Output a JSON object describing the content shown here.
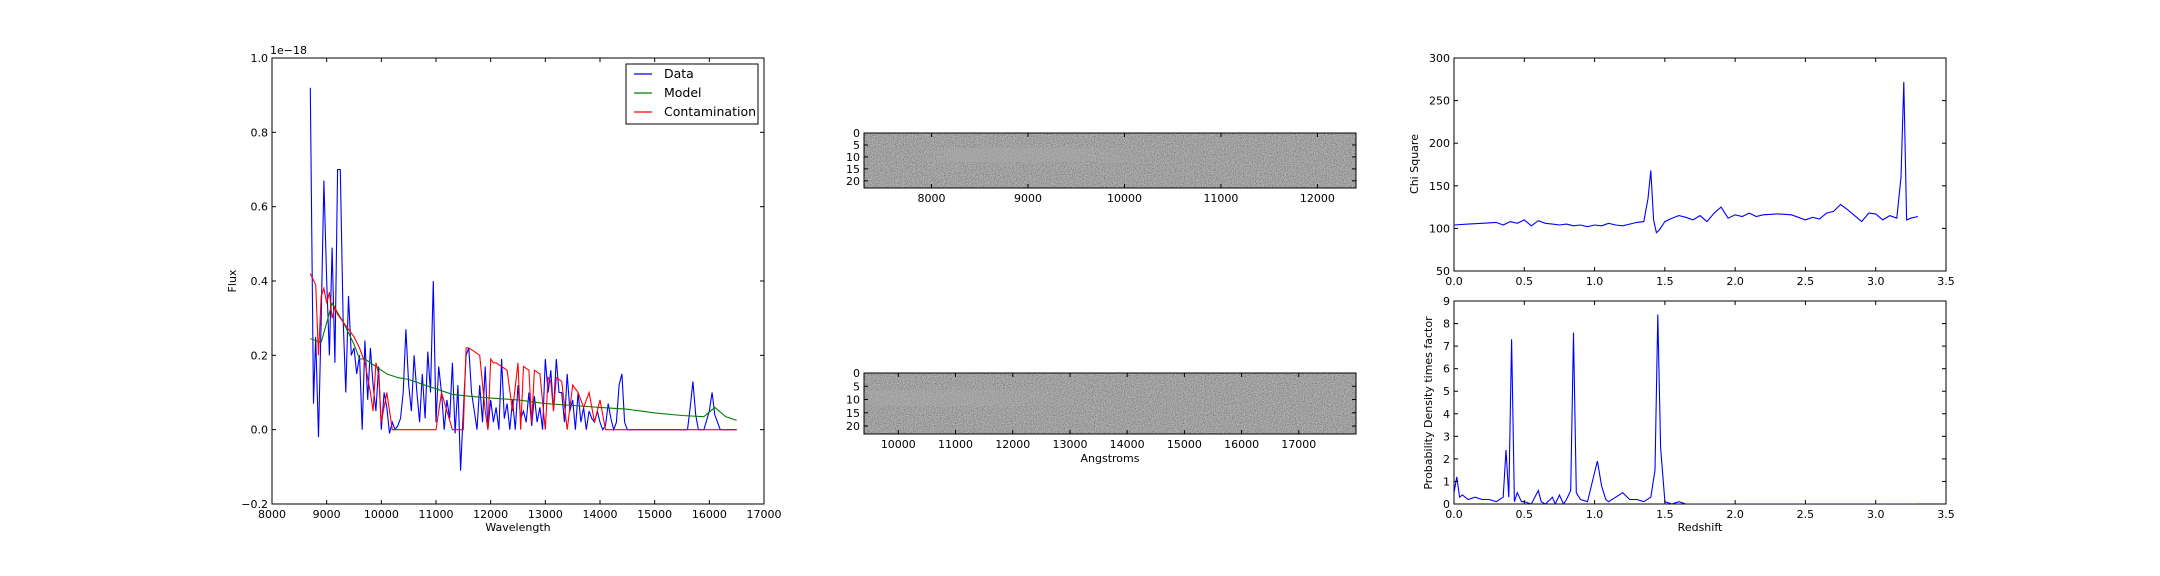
{
  "chart_data": [
    {
      "type": "line",
      "xlabel": "Wavelength",
      "ylabel": "Flux",
      "y_scale_note": "1e−18",
      "xlim": [
        8000,
        17000
      ],
      "ylim": [
        -0.2,
        1.0
      ],
      "xticks": [
        8000,
        9000,
        10000,
        11000,
        12000,
        13000,
        14000,
        15000,
        16000,
        17000
      ],
      "yticks": [
        "−0.2",
        "0.0",
        "0.2",
        "0.4",
        "0.6",
        "0.8",
        "1.0"
      ],
      "ytick_values": [
        -0.2,
        0.0,
        0.2,
        0.4,
        0.6,
        0.8,
        1.0
      ],
      "legend": "top-right",
      "series": [
        {
          "name": "Data",
          "color": "#0000ff",
          "x": [
            8700,
            8760,
            8800,
            8850,
            8900,
            8950,
            9000,
            9050,
            9100,
            9150,
            9200,
            9250,
            9300,
            9350,
            9400,
            9450,
            9500,
            9550,
            9600,
            9650,
            9700,
            9750,
            9800,
            9850,
            9900,
            9950,
            10000,
            10050,
            10100,
            10150,
            10200,
            10250,
            10300,
            10350,
            10400,
            10450,
            10500,
            10550,
            10600,
            10650,
            10700,
            10750,
            10800,
            10850,
            10900,
            10950,
            11000,
            11050,
            11100,
            11150,
            11200,
            11250,
            11300,
            11350,
            11400,
            11450,
            11500,
            11550,
            11600,
            11650,
            11700,
            11750,
            11800,
            11850,
            11900,
            11950,
            12000,
            12050,
            12100,
            12150,
            12200,
            12250,
            12300,
            12350,
            12400,
            12450,
            12500,
            12550,
            12600,
            12650,
            12700,
            12750,
            12800,
            12850,
            12900,
            12950,
            13000,
            13050,
            13100,
            13150,
            13200,
            13250,
            13300,
            13350,
            13400,
            13450,
            13500,
            13550,
            13600,
            13650,
            13700,
            13750,
            13800,
            13850,
            13900,
            13950,
            14000,
            14050,
            14100,
            14150,
            14200,
            14250,
            14300,
            14350,
            14400,
            14450,
            14500,
            14600,
            14800,
            15000,
            15200,
            15400,
            15500,
            15600,
            15650,
            15700,
            15750,
            15800,
            15900,
            16000,
            16050,
            16100,
            16150,
            16200,
            16300,
            16400,
            16500
          ],
          "y": [
            0.92,
            0.07,
            0.25,
            -0.02,
            0.3,
            0.67,
            0.4,
            0.2,
            0.49,
            0.18,
            0.7,
            0.7,
            0.3,
            0.1,
            0.36,
            0.2,
            0.22,
            0.15,
            0.2,
            0.0,
            0.24,
            0.08,
            0.22,
            0.12,
            0.05,
            0.17,
            0.0,
            0.1,
            0.06,
            -0.01,
            0.02,
            0.0,
            0.01,
            0.03,
            0.1,
            0.27,
            0.12,
            0.05,
            0.2,
            0.1,
            0.02,
            0.15,
            0.03,
            0.21,
            0.1,
            0.4,
            0.02,
            0.17,
            0.1,
            0.0,
            0.08,
            0.03,
            0.18,
            -0.01,
            0.12,
            -0.11,
            0.05,
            0.2,
            0.22,
            0.1,
            0.05,
            0.0,
            0.12,
            0.02,
            0.17,
            0.0,
            0.08,
            0.02,
            0.06,
            0.0,
            0.19,
            0.03,
            0.07,
            0.0,
            0.08,
            0.0,
            0.12,
            0.03,
            0.05,
            0.02,
            0.1,
            0.01,
            0.09,
            0.02,
            0.06,
            0.0,
            0.19,
            0.1,
            0.16,
            0.05,
            0.19,
            0.1,
            0.1,
            0.02,
            0.15,
            0.05,
            0.08,
            0.0,
            0.1,
            0.02,
            0.06,
            0.0,
            0.05,
            0.03,
            0.02,
            0.05,
            0.02,
            0.0,
            0.01,
            0.07,
            0.03,
            0.0,
            0.02,
            0.12,
            0.15,
            0.02,
            0.0,
            0.0,
            0.0,
            0.0,
            0.0,
            0.0,
            0.0,
            0.0,
            0.06,
            0.13,
            0.04,
            0.0,
            0.0,
            0.05,
            0.1,
            0.04,
            0.02,
            0.0,
            0.0,
            0.0,
            0.0
          ]
        },
        {
          "name": "Model",
          "color": "#008000",
          "x": [
            8700,
            8900,
            9100,
            9300,
            9500,
            9600,
            9700,
            9900,
            10100,
            10300,
            10500,
            10800,
            11000,
            11300,
            11600,
            12000,
            12500,
            13000,
            13500,
            14000,
            14500,
            15000,
            15500,
            15900,
            16100,
            16300,
            16500
          ],
          "y": [
            0.245,
            0.235,
            0.34,
            0.29,
            0.23,
            0.19,
            0.19,
            0.17,
            0.15,
            0.14,
            0.135,
            0.12,
            0.11,
            0.095,
            0.09,
            0.085,
            0.08,
            0.07,
            0.065,
            0.06,
            0.055,
            0.045,
            0.038,
            0.035,
            0.06,
            0.035,
            0.025
          ]
        },
        {
          "name": "Contamination",
          "color": "#ff0000",
          "x": [
            8700,
            8800,
            8850,
            8900,
            8950,
            9000,
            9050,
            9100,
            9150,
            9200,
            9300,
            9400,
            9500,
            9600,
            9700,
            9750,
            9800,
            9850,
            9900,
            9950,
            10000,
            10100,
            10200,
            10300,
            10500,
            10800,
            11000,
            11100,
            11300,
            11400,
            11500,
            11550,
            11600,
            11700,
            11800,
            11900,
            11950,
            12000,
            12050,
            12100,
            12200,
            12300,
            12400,
            12500,
            12550,
            12600,
            12700,
            12750,
            12800,
            12900,
            13000,
            13050,
            13100,
            13150,
            13200,
            13300,
            13400,
            13500,
            13600,
            13700,
            13800,
            13900,
            14000,
            14100,
            14200,
            14300,
            14400,
            14600,
            15000,
            15500,
            15900,
            16000,
            16100,
            16200,
            16300,
            16500
          ],
          "y": [
            0.42,
            0.39,
            0.2,
            0.36,
            0.38,
            0.34,
            0.37,
            0.3,
            0.33,
            0.31,
            0.29,
            0.27,
            0.25,
            0.22,
            0.18,
            0.14,
            0.1,
            0.05,
            0.18,
            0.15,
            0.02,
            0.1,
            0.0,
            0.0,
            0.0,
            0.0,
            0.0,
            0.1,
            0.0,
            0.0,
            0.0,
            0.22,
            0.22,
            0.21,
            0.2,
            0.05,
            0.0,
            0.19,
            0.18,
            0.18,
            0.17,
            0.16,
            0.05,
            0.18,
            0.0,
            0.17,
            0.16,
            0.02,
            0.16,
            0.15,
            0.0,
            0.14,
            0.13,
            0.05,
            0.14,
            0.13,
            0.0,
            0.12,
            0.1,
            0.06,
            0.1,
            0.02,
            0.08,
            0.0,
            0.0,
            0.0,
            0.0,
            0.0,
            0.0,
            0.0,
            0.0,
            0.0,
            0.0,
            0.0,
            0.0,
            0.0
          ]
        }
      ]
    },
    {
      "type": "heatmap",
      "xlim": [
        7300,
        12400
      ],
      "xticks": [
        8000,
        9000,
        10000,
        11000,
        12000
      ],
      "yticks": [
        "0",
        "5",
        "10",
        "15",
        "20"
      ],
      "ytick_values": [
        0,
        5,
        10,
        15,
        20
      ],
      "ylim": [
        23,
        0
      ],
      "colormap": "gray",
      "trace_span": [
        7900,
        10400
      ]
    },
    {
      "type": "heatmap",
      "xlabel": "Angstroms",
      "xlim": [
        9400,
        18000
      ],
      "xticks": [
        10000,
        11000,
        12000,
        13000,
        14000,
        15000,
        16000,
        17000
      ],
      "yticks": [
        "0",
        "5",
        "10",
        "15",
        "20"
      ],
      "ytick_values": [
        0,
        5,
        10,
        15,
        20
      ],
      "ylim": [
        23,
        0
      ],
      "colormap": "gray",
      "trace_span": [
        9500,
        13500
      ]
    },
    {
      "type": "line",
      "ylabel": "Chi Square",
      "xlim": [
        0.0,
        3.5
      ],
      "ylim": [
        50,
        300
      ],
      "xticks": [
        "0.0",
        "0.5",
        "1.0",
        "1.5",
        "2.0",
        "2.5",
        "3.0",
        "3.5"
      ],
      "xtick_values": [
        0.0,
        0.5,
        1.0,
        1.5,
        2.0,
        2.5,
        3.0,
        3.5
      ],
      "yticks": [
        "50",
        "100",
        "150",
        "200",
        "250",
        "300"
      ],
      "ytick_values": [
        50,
        100,
        150,
        200,
        250,
        300
      ],
      "series": [
        {
          "color": "#0000ff",
          "x": [
            0.0,
            0.1,
            0.2,
            0.3,
            0.35,
            0.4,
            0.45,
            0.5,
            0.55,
            0.6,
            0.65,
            0.7,
            0.75,
            0.8,
            0.85,
            0.9,
            0.95,
            1.0,
            1.05,
            1.1,
            1.15,
            1.2,
            1.25,
            1.3,
            1.35,
            1.38,
            1.4,
            1.42,
            1.44,
            1.46,
            1.5,
            1.55,
            1.6,
            1.65,
            1.7,
            1.75,
            1.8,
            1.85,
            1.9,
            1.95,
            2.0,
            2.05,
            2.1,
            2.15,
            2.2,
            2.3,
            2.4,
            2.5,
            2.55,
            2.6,
            2.65,
            2.7,
            2.75,
            2.8,
            2.85,
            2.9,
            2.95,
            3.0,
            3.05,
            3.1,
            3.15,
            3.18,
            3.2,
            3.22,
            3.25,
            3.3
          ],
          "y": [
            104,
            105,
            106,
            107,
            104,
            108,
            106,
            110,
            103,
            109,
            106,
            105,
            104,
            105,
            103,
            104,
            102,
            104,
            103,
            106,
            104,
            103,
            105,
            107,
            108,
            135,
            168,
            110,
            95,
            98,
            108,
            112,
            115,
            113,
            110,
            115,
            108,
            118,
            125,
            112,
            116,
            114,
            118,
            114,
            116,
            117,
            116,
            110,
            113,
            111,
            118,
            120,
            128,
            122,
            115,
            108,
            118,
            117,
            110,
            115,
            112,
            160,
            272,
            110,
            112,
            114
          ]
        }
      ]
    },
    {
      "type": "line",
      "xlabel": "Redshift",
      "ylabel": "Probability Density times factor",
      "xlim": [
        0.0,
        3.5
      ],
      "ylim": [
        0,
        9
      ],
      "xticks": [
        "0.0",
        "0.5",
        "1.0",
        "1.5",
        "2.0",
        "2.5",
        "3.0",
        "3.5"
      ],
      "xtick_values": [
        0.0,
        0.5,
        1.0,
        1.5,
        2.0,
        2.5,
        3.0,
        3.5
      ],
      "yticks": [
        "0",
        "1",
        "2",
        "3",
        "4",
        "5",
        "6",
        "7",
        "8",
        "9"
      ],
      "ytick_values": [
        0,
        1,
        2,
        3,
        4,
        5,
        6,
        7,
        8,
        9
      ],
      "series": [
        {
          "color": "#0000ff",
          "x": [
            0.0,
            0.02,
            0.04,
            0.06,
            0.1,
            0.15,
            0.2,
            0.25,
            0.3,
            0.35,
            0.37,
            0.39,
            0.41,
            0.43,
            0.45,
            0.48,
            0.5,
            0.55,
            0.6,
            0.62,
            0.65,
            0.7,
            0.72,
            0.75,
            0.78,
            0.8,
            0.83,
            0.85,
            0.87,
            0.9,
            0.95,
            1.0,
            1.02,
            1.05,
            1.08,
            1.1,
            1.15,
            1.2,
            1.25,
            1.3,
            1.35,
            1.4,
            1.43,
            1.45,
            1.47,
            1.5,
            1.55,
            1.6,
            1.65,
            1.7,
            2.0,
            2.5,
            3.0,
            3.3
          ],
          "y": [
            0.5,
            1.2,
            0.3,
            0.4,
            0.2,
            0.3,
            0.2,
            0.2,
            0.1,
            0.3,
            2.4,
            0.3,
            7.3,
            0.1,
            0.5,
            0.1,
            0.1,
            0.0,
            0.6,
            0.1,
            0.0,
            0.3,
            0.0,
            0.4,
            0.0,
            0.2,
            0.6,
            7.6,
            0.5,
            0.2,
            0.1,
            1.4,
            1.9,
            0.8,
            0.2,
            0.1,
            0.3,
            0.5,
            0.2,
            0.2,
            0.1,
            0.3,
            1.5,
            8.4,
            2.5,
            0.1,
            0.0,
            0.1,
            0.0,
            0.0,
            0.0,
            0.0,
            0.0,
            0.0
          ]
        }
      ]
    }
  ]
}
